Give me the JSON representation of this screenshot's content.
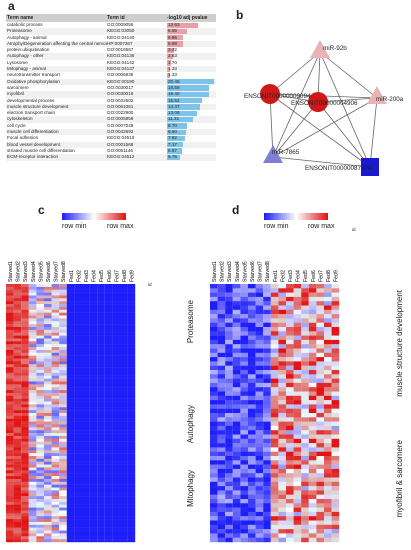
{
  "panel_a": {
    "letter": "a",
    "headers": [
      "Term name",
      "Term id",
      "-log10 adj pvalue"
    ],
    "rows": [
      {
        "name": "catabolic process",
        "id": "GO:0009056",
        "p": "13.63"
      },
      {
        "name": "Proteasome",
        "id": "KEGG:03050",
        "p": "8.55"
      },
      {
        "name": "Autophagy - animal",
        "id": "KEGG:04140",
        "p": "6.95"
      },
      {
        "name": "Atrophy/Degeneration affecting the central nervous system",
        "id": "HP:0007367",
        "p": "6.89"
      },
      {
        "name": "protein ubiquitination",
        "id": "GO:0016567",
        "p": "3.22"
      },
      {
        "name": "Autophagy - other",
        "id": "KEGG:04136",
        "p": "2.63"
      },
      {
        "name": "Lysosome",
        "id": "KEGG:04142",
        "p": "1.70"
      },
      {
        "name": "Mitophagy - animal",
        "id": "KEGG:04137",
        "p": "1.33"
      },
      {
        "name": "neurotransmitter transport",
        "id": "GO:0006836",
        "p": "1.33"
      },
      {
        "name": "Oxidative phosphorylation",
        "id": "KEGG:00190",
        "p": "20.46"
      },
      {
        "name": "sarcomere",
        "id": "GO:0030017",
        "p": "18.59"
      },
      {
        "name": "myofibril",
        "id": "GO:0030016",
        "p": "18.40"
      },
      {
        "name": "developmental process",
        "id": "GO:0032502",
        "p": "15.52"
      },
      {
        "name": "muscle structure development",
        "id": "GO:0061061",
        "p": "14.37"
      },
      {
        "name": "electron transport chain",
        "id": "GO:0022900",
        "p": "13.06"
      },
      {
        "name": "cytoskeleton",
        "id": "GO:0005856",
        "p": "11.31"
      },
      {
        "name": "cell cycle",
        "id": "GO:0007049",
        "p": "8.70"
      },
      {
        "name": "muscle cell differentiation",
        "id": "GO:0042692",
        "p": "8.50"
      },
      {
        "name": "Focal adhesion",
        "id": "KEGG:04510",
        "p": "7.82"
      },
      {
        "name": "blood vessel development",
        "id": "GO:0001568",
        "p": "7.17"
      },
      {
        "name": "striated muscle cell differentiation",
        "id": "GO:0051146",
        "p": "6.67"
      },
      {
        "name": "ECM-receptor interaction",
        "id": "KEGG:04512",
        "p": "5.75"
      }
    ],
    "pvalues": [
      13.63,
      8.55,
      6.95,
      6.89,
      3.22,
      2.63,
      1.7,
      1.33,
      1.33,
      20.46,
      18.59,
      18.4,
      15.52,
      14.37,
      13.06,
      11.31,
      8.7,
      8.5,
      7.82,
      7.17,
      6.67,
      5.75
    ],
    "bar_colors": {
      "up": "#e8a0a8",
      "down": "#7ec4ea"
    }
  },
  "panel_b": {
    "letter": "b",
    "nodes": [
      {
        "label": "miR-92b",
        "shape": "triangle",
        "color": "#e8b4b4"
      },
      {
        "label": "miR-200a",
        "shape": "triangle",
        "color": "#e8b4b4"
      },
      {
        "label": "miR-7865",
        "shape": "triangle",
        "color": "#7f7fd8"
      },
      {
        "label": "ENSONIT00000087424",
        "shape": "square",
        "color": "#1a1ad0"
      },
      {
        "label": "ENSONIT00000004906",
        "shape": "circle",
        "color": "#d01818"
      },
      {
        "label": "ENSONIT00000009094",
        "shape": "circle",
        "color": "#d01818"
      }
    ]
  },
  "panel_c": {
    "letter": "c",
    "legend_min": "row min",
    "legend_max": "row max",
    "columns": [
      "Starved1",
      "Starved2",
      "Starved3",
      "Starved4",
      "Starved5",
      "Starved6",
      "Starved7",
      "Starved8",
      "Fed1",
      "Fed2",
      "Fed3",
      "Fed4",
      "Fed5",
      "Fed6",
      "Fed7",
      "Fed8",
      "Fed9"
    ],
    "id_label": "id",
    "sections": [
      "Proteasome",
      "Autophagy",
      "Mitophagy"
    ]
  },
  "panel_d": {
    "letter": "d",
    "legend_min": "row min",
    "legend_max": "row max",
    "columns": [
      "Starved1",
      "Starved2",
      "Starved3",
      "Starved4",
      "Starved5",
      "Starved6",
      "Starved7",
      "Starved8",
      "Fed1",
      "Fed2",
      "Fed3",
      "Fed4",
      "Fed5",
      "Fed6",
      "Fed7",
      "Fed8",
      "Fed9"
    ],
    "id_label": "id",
    "sections": [
      "muscle structure development",
      "myofibril & sarcomere"
    ]
  }
}
